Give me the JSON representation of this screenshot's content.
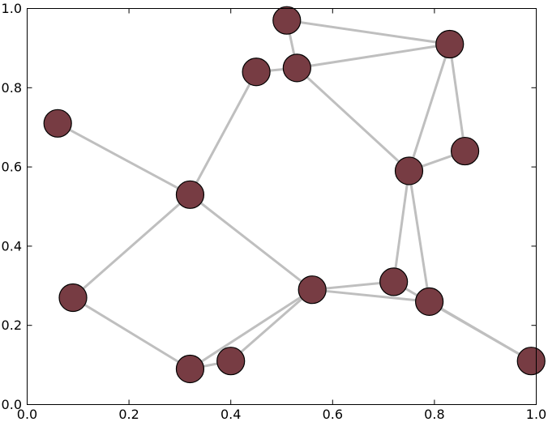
{
  "chart_data": {
    "type": "scatter",
    "title": "",
    "xlabel": "",
    "ylabel": "",
    "xlim": [
      0.0,
      1.0
    ],
    "ylim": [
      0.0,
      1.0
    ],
    "xticks": [
      "0.0",
      "0.2",
      "0.4",
      "0.6",
      "0.8",
      "1.0"
    ],
    "yticks": [
      "0.0",
      "0.2",
      "0.4",
      "0.6",
      "0.8",
      "1.0"
    ],
    "grid": false,
    "legend": "none",
    "node_color": "#773c43",
    "edge_color": "#bfbfbf",
    "nodes": [
      {
        "id": 0,
        "x": 0.06,
        "y": 0.71
      },
      {
        "id": 1,
        "x": 0.09,
        "y": 0.27
      },
      {
        "id": 2,
        "x": 0.32,
        "y": 0.53
      },
      {
        "id": 3,
        "x": 0.32,
        "y": 0.09
      },
      {
        "id": 4,
        "x": 0.4,
        "y": 0.11
      },
      {
        "id": 5,
        "x": 0.45,
        "y": 0.84
      },
      {
        "id": 6,
        "x": 0.51,
        "y": 0.97
      },
      {
        "id": 7,
        "x": 0.53,
        "y": 0.85
      },
      {
        "id": 8,
        "x": 0.56,
        "y": 0.29
      },
      {
        "id": 9,
        "x": 0.72,
        "y": 0.31
      },
      {
        "id": 10,
        "x": 0.75,
        "y": 0.59
      },
      {
        "id": 11,
        "x": 0.79,
        "y": 0.26
      },
      {
        "id": 12,
        "x": 0.83,
        "y": 0.91
      },
      {
        "id": 13,
        "x": 0.86,
        "y": 0.64
      },
      {
        "id": 14,
        "x": 0.99,
        "y": 0.11
      }
    ],
    "edges": [
      [
        0,
        2
      ],
      [
        2,
        5
      ],
      [
        2,
        1
      ],
      [
        2,
        8
      ],
      [
        1,
        3
      ],
      [
        3,
        4
      ],
      [
        3,
        8
      ],
      [
        4,
        8
      ],
      [
        5,
        7
      ],
      [
        6,
        7
      ],
      [
        6,
        12
      ],
      [
        7,
        12
      ],
      [
        7,
        10
      ],
      [
        12,
        10
      ],
      [
        12,
        13
      ],
      [
        10,
        13
      ],
      [
        10,
        9
      ],
      [
        10,
        11
      ],
      [
        8,
        9
      ],
      [
        8,
        11
      ],
      [
        9,
        14
      ],
      [
        11,
        14
      ]
    ]
  }
}
